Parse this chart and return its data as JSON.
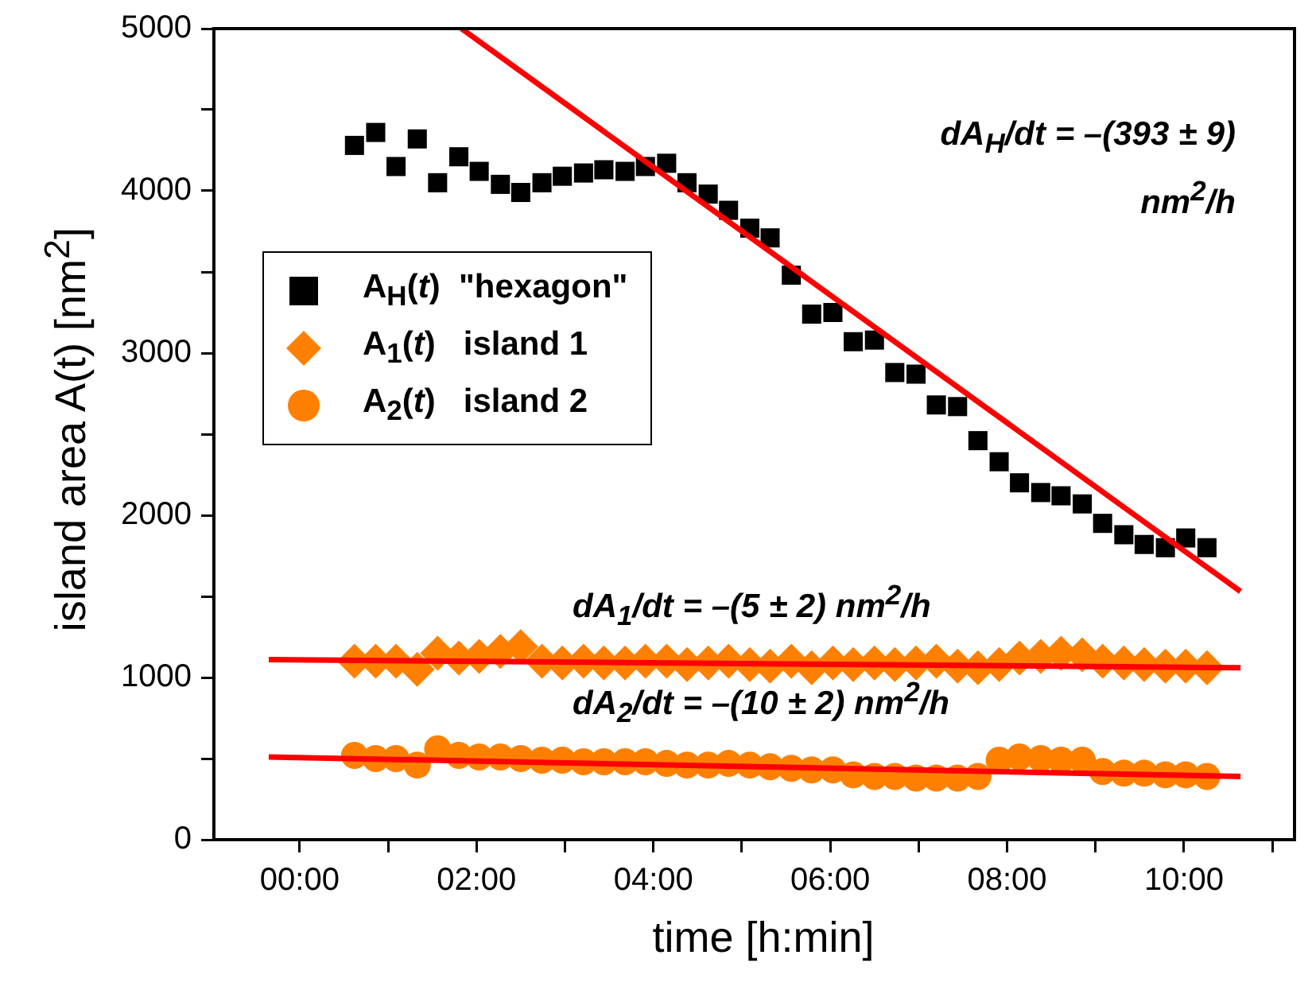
{
  "chart_data": {
    "type": "scatter",
    "xlabel": "time [h:min]",
    "ylabel": "island area  A(t) [nm$^{2}$]",
    "x": [
      0.62,
      0.86,
      1.09,
      1.33,
      1.56,
      1.8,
      2.03,
      2.27,
      2.5,
      2.74,
      2.97,
      3.21,
      3.44,
      3.68,
      3.91,
      4.15,
      4.38,
      4.62,
      4.85,
      5.09,
      5.32,
      5.56,
      5.79,
      6.03,
      6.26,
      6.5,
      6.73,
      6.97,
      7.2,
      7.44,
      7.67,
      7.91,
      8.14,
      8.38,
      8.61,
      8.85,
      9.08,
      9.32,
      9.55,
      9.79,
      10.02,
      10.26
    ],
    "series": [
      {
        "name": "A$_{H}$(t)  \"hexagon\"",
        "marker": "square",
        "color": "#000000",
        "values": [
          4280,
          4360,
          4150,
          4320,
          4050,
          4210,
          4120,
          4040,
          3990,
          4050,
          4090,
          4110,
          4130,
          4120,
          4150,
          4170,
          4050,
          3980,
          3880,
          3770,
          3710,
          3480,
          3240,
          3250,
          3070,
          3080,
          2880,
          2870,
          2680,
          2670,
          2460,
          2330,
          2200,
          2140,
          2120,
          2070,
          1950,
          1880,
          1820,
          1800,
          1860,
          1800
        ]
      },
      {
        "name": "A$_{1}$(t)   island 1",
        "marker": "diamond",
        "color": "#ff8000",
        "values": [
          1100,
          1100,
          1100,
          1050,
          1150,
          1120,
          1130,
          1160,
          1190,
          1100,
          1090,
          1100,
          1090,
          1090,
          1100,
          1100,
          1080,
          1090,
          1100,
          1080,
          1070,
          1100,
          1060,
          1090,
          1080,
          1090,
          1080,
          1090,
          1100,
          1070,
          1060,
          1080,
          1120,
          1130,
          1150,
          1140,
          1100,
          1090,
          1080,
          1070,
          1070,
          1060
        ]
      },
      {
        "name": "A$_{2}$(t)   island 2",
        "marker": "circle",
        "color": "#ff8000",
        "values": [
          520,
          500,
          500,
          460,
          560,
          520,
          510,
          510,
          500,
          490,
          490,
          480,
          480,
          480,
          480,
          470,
          460,
          460,
          470,
          460,
          450,
          440,
          430,
          430,
          400,
          390,
          390,
          380,
          380,
          380,
          390,
          490,
          510,
          500,
          490,
          490,
          420,
          410,
          410,
          400,
          400,
          390
        ]
      },
      {
        "type": "line",
        "marker": "none",
        "color": "#ff0000",
        "x": [
          1.83,
          10.64
        ],
        "values": [
          5000,
          1530
        ]
      },
      {
        "type": "line",
        "marker": "none",
        "color": "#ff0000",
        "x": [
          -0.35,
          10.64
        ],
        "values": [
          1110,
          1060
        ]
      },
      {
        "type": "line",
        "marker": "none",
        "color": "#ff0000",
        "x": [
          -0.35,
          10.64
        ],
        "values": [
          510,
          390
        ]
      }
    ],
    "xlim": [
      -0.97,
      11.25
    ],
    "xticks": [
      {
        "value": 0,
        "label": "00:00"
      },
      {
        "value": 1,
        "label": null
      },
      {
        "value": 2,
        "label": "02:00"
      },
      {
        "value": 3,
        "label": null
      },
      {
        "value": 4,
        "label": "04:00"
      },
      {
        "value": 5,
        "label": null
      },
      {
        "value": 6,
        "label": "06:00"
      },
      {
        "value": 7,
        "label": null
      },
      {
        "value": 8,
        "label": "08:00"
      },
      {
        "value": 9,
        "label": null
      },
      {
        "value": 10,
        "label": "10:00"
      },
      {
        "value": 11,
        "label": null
      }
    ],
    "ylim": [
      0,
      5000
    ],
    "yticks": [
      0,
      {
        "value": 500,
        "label": null
      },
      1000,
      {
        "value": 1500,
        "label": null
      },
      2000,
      {
        "value": 2500,
        "label": null
      },
      3000,
      {
        "value": 3500,
        "label": null
      },
      4000,
      {
        "value": 4500,
        "label": null
      },
      5000
    ],
    "grid": false,
    "legend": "center left",
    "annotations": [
      "dA$_{H}$/dt = –(393 ± 9) nm$^{2}$/h",
      "dA$_{1}$/dt = –(5 ± 2) nm$^{2}$/h",
      "dA$_{2}$/dt = –(10 ± 2) nm$^{2}$/h"
    ]
  }
}
